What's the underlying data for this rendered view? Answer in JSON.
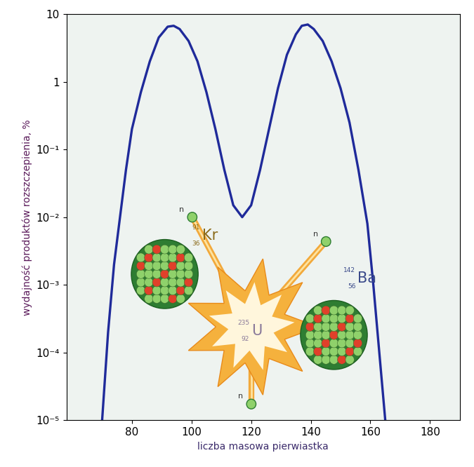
{
  "chart_data": {
    "type": "line",
    "x_label": "liczba masowa pierwiastka",
    "y_label": "wydajność produktów rozszczepienia, %",
    "x": [
      70,
      72,
      74,
      76,
      78,
      80,
      83,
      86,
      89,
      92,
      94,
      96,
      99,
      102,
      105,
      108,
      111,
      114,
      117,
      120,
      123,
      126,
      129,
      132,
      135,
      137,
      139,
      141,
      144,
      147,
      150,
      153,
      156,
      159,
      161,
      163,
      165
    ],
    "values": [
      1e-05,
      0.0002,
      0.002,
      0.01,
      0.05,
      0.2,
      0.7,
      2,
      4.5,
      6.5,
      6.7,
      6,
      4,
      2,
      0.7,
      0.2,
      0.05,
      0.015,
      0.01,
      0.015,
      0.05,
      0.2,
      0.8,
      2.5,
      5,
      6.7,
      7,
      6,
      4,
      2,
      0.8,
      0.25,
      0.05,
      0.008,
      0.001,
      0.0001,
      1e-05
    ],
    "color": "#1f2a9a",
    "log": "y",
    "grid": false,
    "xlim": [
      58,
      190
    ],
    "xticks": [
      80,
      100,
      120,
      140,
      160,
      180
    ],
    "ylim": [
      1e-05,
      10
    ],
    "yticks": [
      {
        "value": 1e-05,
        "label": "10⁻⁵"
      },
      {
        "value": 0.0001,
        "label": "10⁻⁴"
      },
      {
        "value": 0.001,
        "label": "10⁻³"
      },
      {
        "value": 0.01,
        "label": "10⁻²"
      },
      {
        "value": 0.1,
        "label": "10⁻¹"
      },
      1,
      10
    ],
    "nuclides": [
      {
        "symbol": "Kr",
        "mass_number": 91,
        "atomic_number": 36
      },
      {
        "symbol": "U",
        "mass_number": 235,
        "atomic_number": 92
      },
      {
        "symbol": "Ba",
        "mass_number": 142,
        "atomic_number": 56
      }
    ],
    "neutrons": [
      "n",
      "n",
      "n"
    ]
  }
}
